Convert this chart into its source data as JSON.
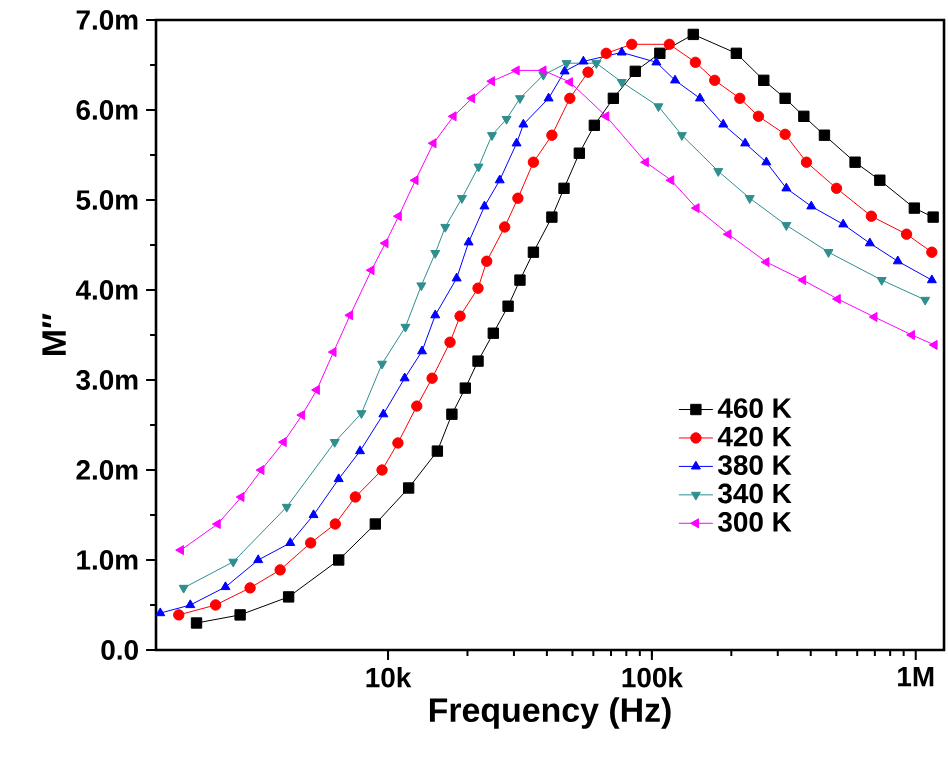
{
  "chart_data": {
    "type": "line",
    "xlabel": "Frequency (Hz)",
    "ylabel": "M″",
    "log": "x",
    "xlim": [
      1320,
      1280000
    ],
    "ylim": [
      0,
      7
    ],
    "xticks": [
      {
        "value": 10000,
        "label": "10k"
      },
      {
        "value": 100000,
        "label": "100k"
      },
      {
        "value": 1000000,
        "label": "1M"
      }
    ],
    "yticks": [
      {
        "value": 0,
        "label": "0.0"
      },
      {
        "value": 1,
        "label": "1.0m"
      },
      {
        "value": 2,
        "label": "2.0m"
      },
      {
        "value": 3,
        "label": "3.0m"
      },
      {
        "value": 4,
        "label": "4.0m"
      },
      {
        "value": 5,
        "label": "5.0m"
      },
      {
        "value": 6,
        "label": "6.0m"
      },
      {
        "value": 7,
        "label": "7.0m"
      }
    ],
    "legend": "bottom right",
    "grid": false,
    "line_style": "solid",
    "series": [
      {
        "name": "460 K",
        "color": "#000000",
        "marker": "square",
        "x": [
          1880,
          2750,
          4200,
          6500,
          8950,
          11970,
          15380,
          17460,
          19630,
          21930,
          25060,
          28510,
          31620,
          35560,
          41780,
          46450,
          53090,
          60530,
          71450,
          86500,
          107200,
          143500,
          209000,
          265500,
          319900,
          376700,
          450800,
          589000,
          731000,
          988000,
          1164000
        ],
        "values": [
          0.3,
          0.39,
          0.59,
          1.0,
          1.4,
          1.8,
          2.21,
          2.62,
          2.91,
          3.21,
          3.52,
          3.82,
          4.11,
          4.42,
          4.81,
          5.13,
          5.52,
          5.83,
          6.13,
          6.43,
          6.63,
          6.84,
          6.63,
          6.33,
          6.13,
          5.93,
          5.72,
          5.42,
          5.22,
          4.91,
          4.81
        ]
      },
      {
        "name": "420 K",
        "color": "#ff0000",
        "marker": "circle",
        "x": [
          1610,
          2220,
          3000,
          3900,
          5090,
          6310,
          7520,
          9490,
          10900,
          12850,
          14690,
          17180,
          18750,
          21930,
          23660,
          27680,
          31060,
          35560,
          41780,
          48870,
          57280,
          67140,
          83900,
          116500,
          146200,
          173000,
          215400,
          253500,
          319900,
          385500,
          501000,
          679000,
          923000,
          1151000
        ],
        "values": [
          0.39,
          0.5,
          0.69,
          0.89,
          1.19,
          1.4,
          1.7,
          2.0,
          2.3,
          2.71,
          3.02,
          3.42,
          3.71,
          4.02,
          4.32,
          4.7,
          5.02,
          5.42,
          5.72,
          6.13,
          6.42,
          6.63,
          6.73,
          6.73,
          6.53,
          6.33,
          6.13,
          5.93,
          5.73,
          5.42,
          5.13,
          4.82,
          4.62,
          4.42
        ]
      },
      {
        "name": "380 K",
        "color": "#0000ff",
        "marker": "triangle",
        "x": [
          1370,
          1780,
          2420,
          3220,
          4260,
          5220,
          6500,
          7830,
          9600,
          11560,
          13450,
          15100,
          18200,
          20200,
          23200,
          26500,
          30700,
          32580,
          40600,
          46700,
          55000,
          76900,
          104000,
          122400,
          152100,
          186400,
          225700,
          271500,
          323300,
          401900,
          531000,
          670000,
          855000,
          1151000
        ],
        "values": [
          0.41,
          0.5,
          0.7,
          1.0,
          1.19,
          1.5,
          1.9,
          2.21,
          2.62,
          3.02,
          3.32,
          3.72,
          4.13,
          4.53,
          4.93,
          5.22,
          5.63,
          5.84,
          6.13,
          6.43,
          6.54,
          6.64,
          6.53,
          6.33,
          6.13,
          5.84,
          5.63,
          5.42,
          5.13,
          4.93,
          4.73,
          4.52,
          4.32,
          4.11
        ]
      },
      {
        "name": "340 K",
        "color": "#2f8f8f",
        "marker": "triangle-down",
        "x": [
          1680,
          2590,
          4130,
          6280,
          7930,
          9490,
          11640,
          13370,
          15100,
          16480,
          19050,
          22030,
          24770,
          28130,
          31620,
          38800,
          47500,
          61600,
          76900,
          105900,
          129900,
          178500,
          234900,
          323300,
          467000,
          743000,
          1086000
        ],
        "values": [
          0.69,
          0.98,
          1.59,
          2.31,
          2.63,
          3.18,
          3.59,
          4.05,
          4.41,
          4.7,
          5.02,
          5.37,
          5.72,
          5.9,
          6.13,
          6.39,
          6.52,
          6.52,
          6.31,
          6.04,
          5.72,
          5.32,
          5.02,
          4.72,
          4.42,
          4.11,
          3.89
        ]
      },
      {
        "name": "300 K",
        "color": "#ff00ff",
        "marker": "triangle-left",
        "x": [
          1640,
          2260,
          2780,
          3310,
          4020,
          4720,
          5370,
          6210,
          7180,
          8650,
          9770,
          10970,
          12700,
          14860,
          17700,
          20800,
          24770,
          30700,
          38800,
          48900,
          67100,
          94800,
          118300,
          147600,
          195000,
          271500,
          374100,
          506000,
          697000,
          967000,
          1178000
        ],
        "values": [
          1.11,
          1.4,
          1.7,
          2.0,
          2.31,
          2.61,
          2.89,
          3.31,
          3.72,
          4.22,
          4.52,
          4.82,
          5.22,
          5.63,
          5.93,
          6.13,
          6.32,
          6.44,
          6.44,
          6.31,
          5.93,
          5.42,
          5.22,
          4.91,
          4.62,
          4.31,
          4.11,
          3.9,
          3.7,
          3.5,
          3.39
        ]
      }
    ]
  }
}
